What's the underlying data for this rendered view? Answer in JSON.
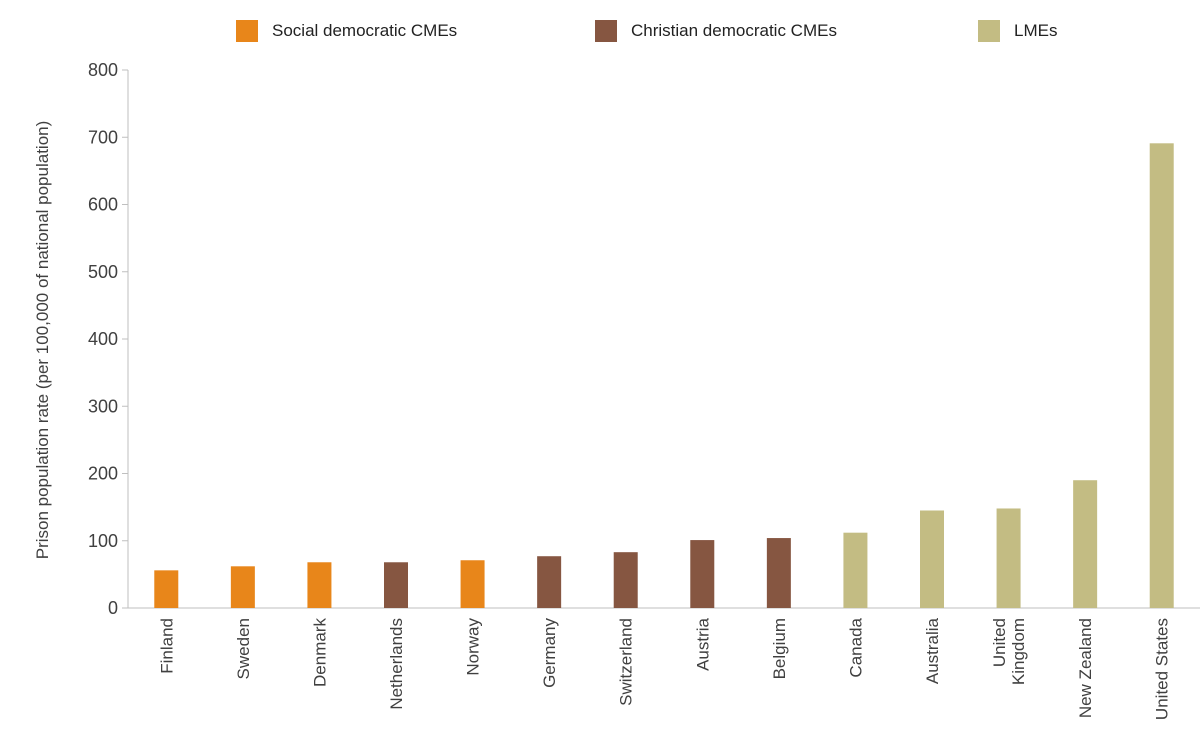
{
  "chart_data": {
    "type": "bar",
    "title": "",
    "xlabel": "",
    "ylabel": "Prison population rate (per 100,000 of national population)",
    "ylim": [
      0,
      800
    ],
    "yticks": [
      0,
      100,
      200,
      300,
      400,
      500,
      600,
      700,
      800
    ],
    "grid": false,
    "legend_position": "top",
    "legend": [
      {
        "name": "Social democratic CMEs",
        "color": "#E8861A"
      },
      {
        "name": "Christian democratic CMEs",
        "color": "#865641"
      },
      {
        "name": "LMEs",
        "color": "#C3BC83"
      }
    ],
    "categories": [
      {
        "label": [
          "Finland"
        ],
        "value": 56,
        "group": 0
      },
      {
        "label": [
          "Sweden"
        ],
        "value": 62,
        "group": 0
      },
      {
        "label": [
          "Denmark"
        ],
        "value": 68,
        "group": 0
      },
      {
        "label": [
          "Netherlands"
        ],
        "value": 68,
        "group": 1
      },
      {
        "label": [
          "Norway"
        ],
        "value": 71,
        "group": 0
      },
      {
        "label": [
          "Germany"
        ],
        "value": 77,
        "group": 1
      },
      {
        "label": [
          "Switzerland"
        ],
        "value": 83,
        "group": 1
      },
      {
        "label": [
          "Austria"
        ],
        "value": 101,
        "group": 1
      },
      {
        "label": [
          "Belgium"
        ],
        "value": 104,
        "group": 1
      },
      {
        "label": [
          "Canada"
        ],
        "value": 112,
        "group": 2
      },
      {
        "label": [
          "Australia"
        ],
        "value": 145,
        "group": 2
      },
      {
        "label": [
          "United",
          "Kingdom"
        ],
        "value": 148,
        "group": 2
      },
      {
        "label": [
          "New Zealand"
        ],
        "value": 190,
        "group": 2
      },
      {
        "label": [
          "United States"
        ],
        "value": 691,
        "group": 2
      }
    ]
  }
}
